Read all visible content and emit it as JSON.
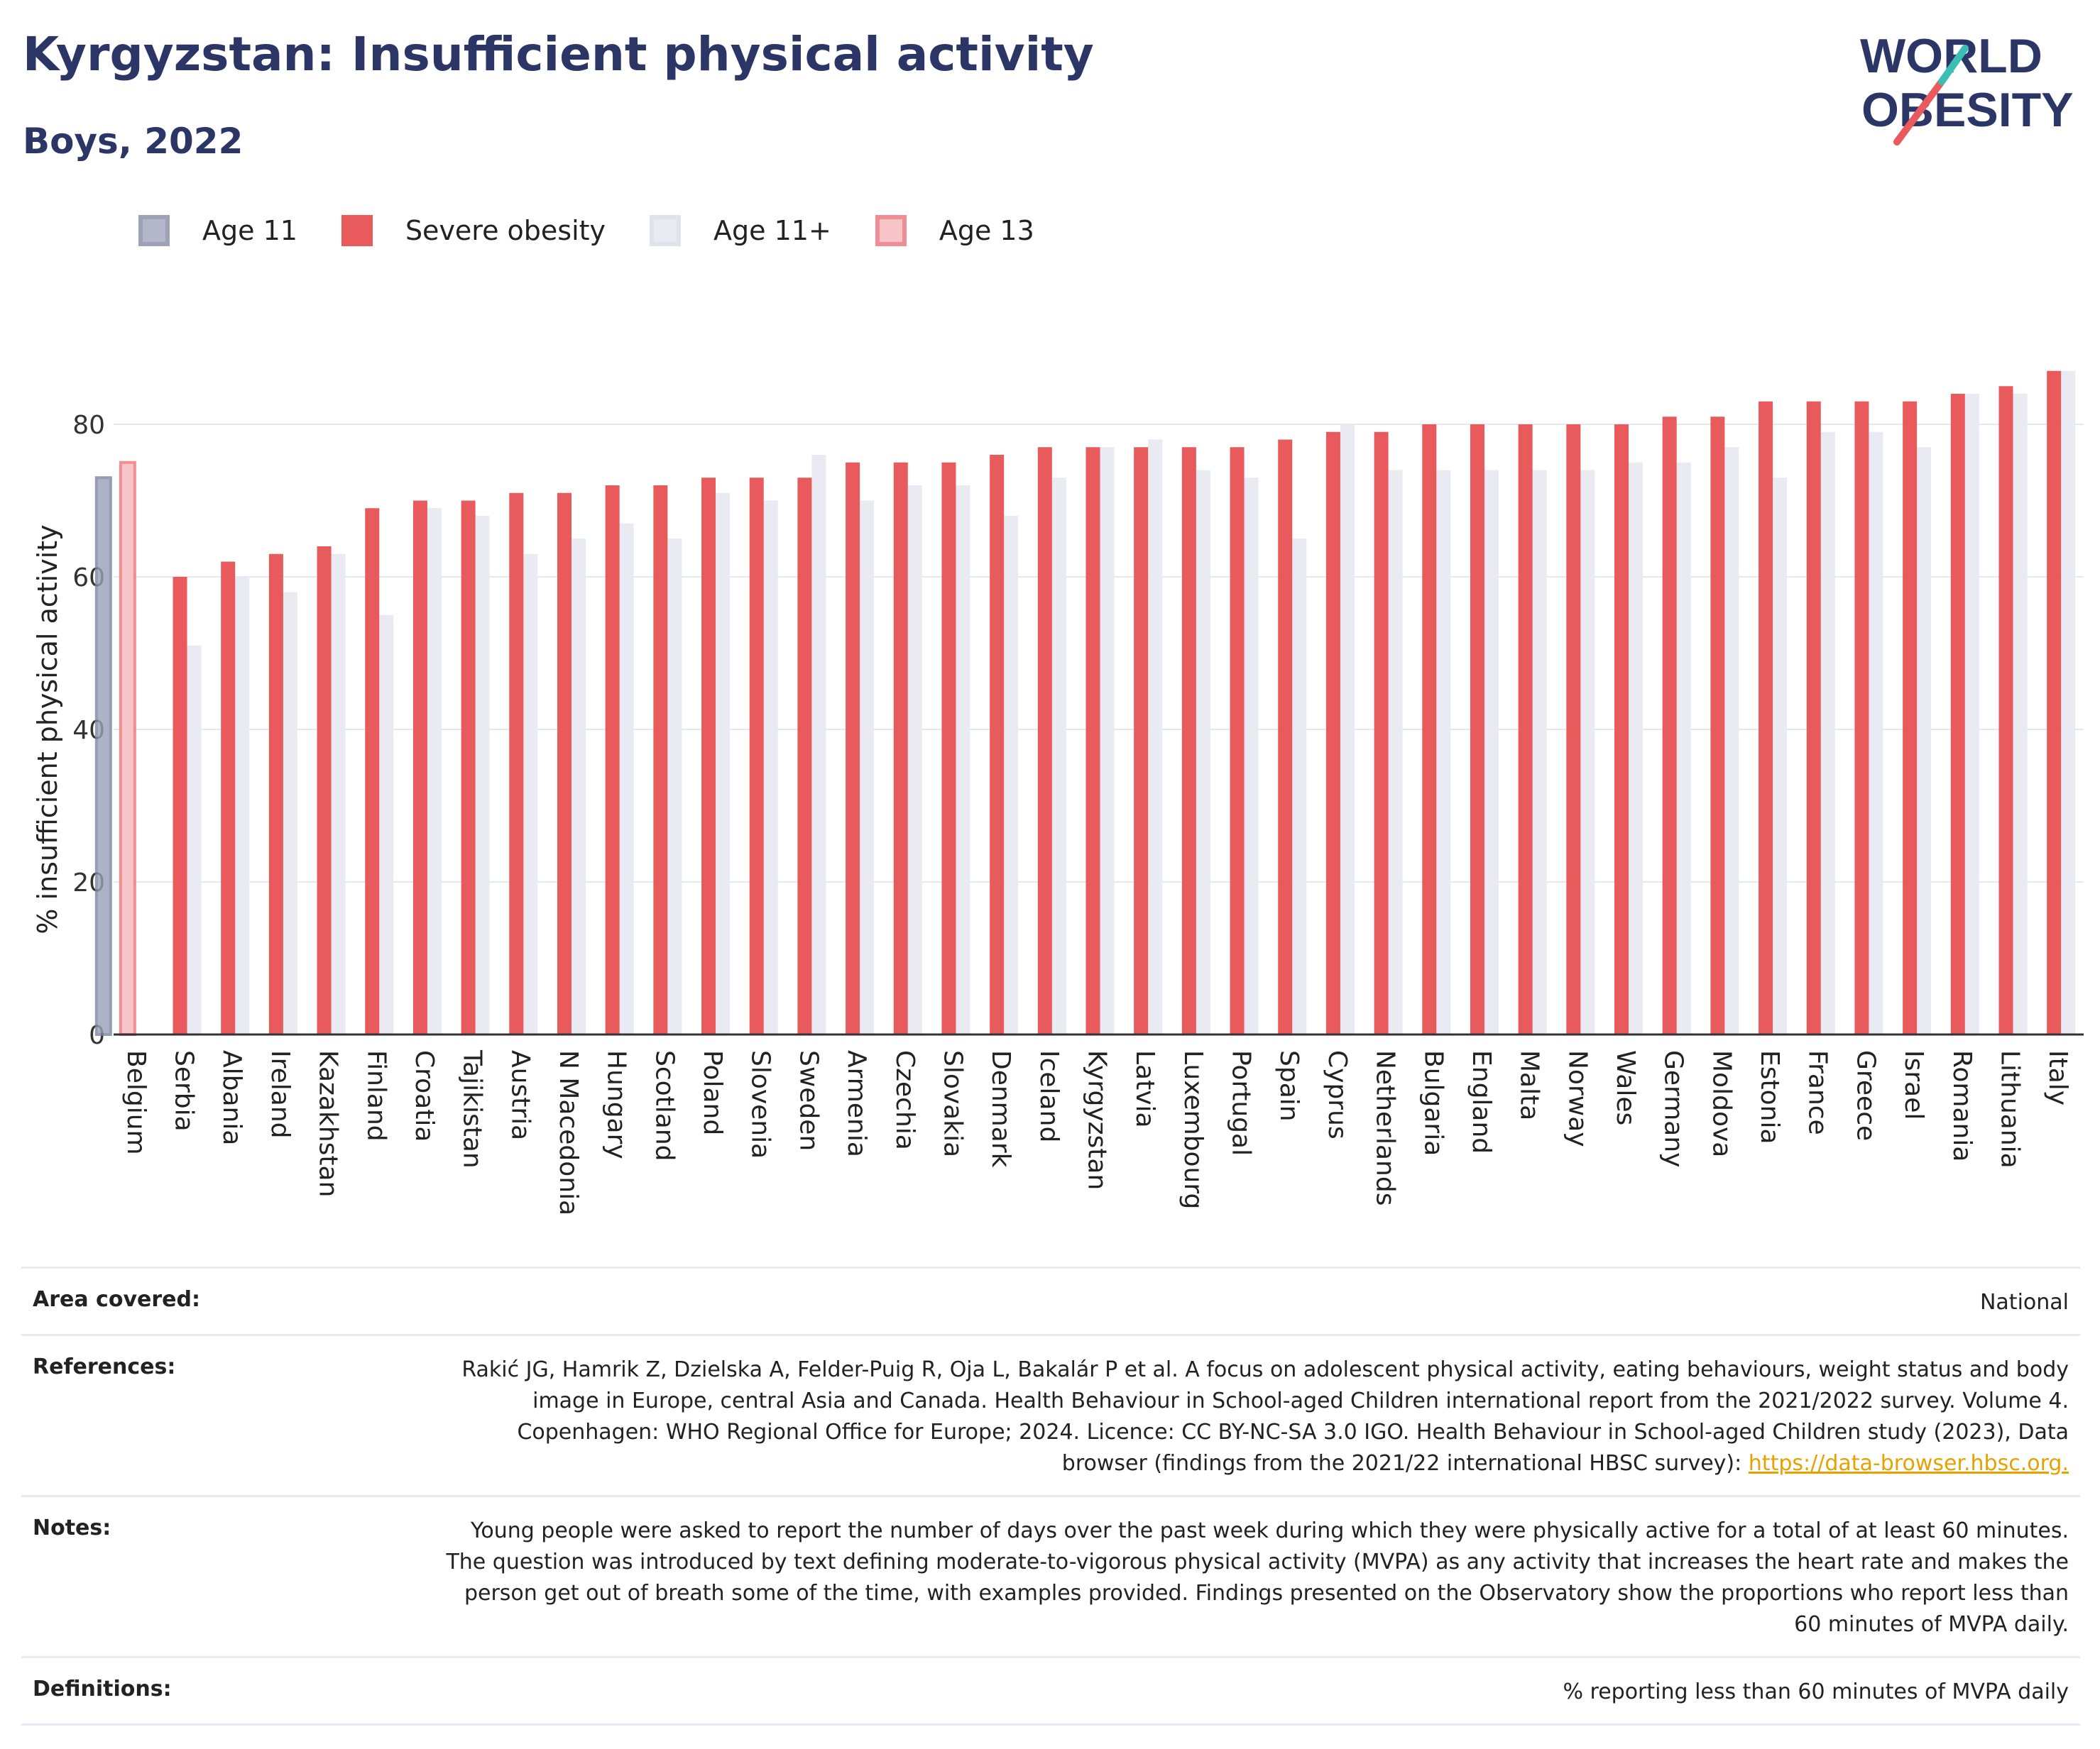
{
  "header": {
    "title": "Kyrgyzstan: Insufficient physical activity",
    "subtitle": "Boys, 2022"
  },
  "logo": {
    "line1": "WORLD",
    "line2": "OBESITY"
  },
  "legend": [
    {
      "label": "Age 11",
      "color": "#9aa0b8",
      "border": "#7d84a0"
    },
    {
      "label": "Severe obesity",
      "color": "#e85a5c",
      "border": "#e85a5c"
    },
    {
      "label": "Age 11+",
      "color": "#e9eaf2",
      "border": "#e0e2ec"
    },
    {
      "label": "Age 13",
      "color": "#f7b6ba",
      "border": "#f18e94"
    }
  ],
  "chart_data": {
    "type": "bar",
    "ylabel": "% insufficient physical activity",
    "ylim": [
      0,
      90
    ],
    "yticks": [
      0,
      20,
      40,
      60,
      80
    ],
    "grid": true,
    "categories": [
      "Belgium",
      "Serbia",
      "Albania",
      "Ireland",
      "Kazakhstan",
      "Finland",
      "Croatia",
      "Tajikistan",
      "Austria",
      "N Macedonia",
      "Hungary",
      "Scotland",
      "Poland",
      "Slovenia",
      "Sweden",
      "Armenia",
      "Czechia",
      "Slovakia",
      "Denmark",
      "Iceland",
      "Kyrgyzstan",
      "Latvia",
      "Luxembourg",
      "Portugal",
      "Spain",
      "Cyprus",
      "Netherlands",
      "Bulgaria",
      "England",
      "Malta",
      "Norway",
      "Wales",
      "Germany",
      "Moldova",
      "Estonia",
      "France",
      "Greece",
      "Israel",
      "Romania",
      "Lithuania",
      "Italy"
    ],
    "series": [
      {
        "name": "Severe obesity",
        "color": "#e85a5c",
        "values": [
          null,
          60,
          62,
          63,
          64,
          69,
          70,
          70,
          71,
          71,
          72,
          72,
          73,
          73,
          73,
          75,
          75,
          75,
          76,
          77,
          77,
          77,
          77,
          77,
          78,
          79,
          79,
          80,
          80,
          80,
          80,
          80,
          81,
          81,
          83,
          83,
          83,
          83,
          84,
          85,
          87
        ]
      },
      {
        "name": "Age 11+",
        "color": "#e9eaf2",
        "values": [
          null,
          51,
          60,
          58,
          63,
          55,
          69,
          68,
          63,
          65,
          67,
          65,
          71,
          70,
          76,
          70,
          72,
          72,
          68,
          73,
          77,
          78,
          74,
          73,
          65,
          80,
          74,
          74,
          74,
          74,
          74,
          75,
          75,
          77,
          73,
          79,
          79,
          77,
          84,
          84,
          87
        ]
      },
      {
        "name": "Age 11",
        "color": "#9aa0b8",
        "values": [
          73,
          null,
          null,
          null,
          null,
          null,
          null,
          null,
          null,
          null,
          null,
          null,
          null,
          null,
          null,
          null,
          null,
          null,
          null,
          null,
          null,
          null,
          null,
          null,
          null,
          null,
          null,
          null,
          null,
          null,
          null,
          null,
          null,
          null,
          null,
          null,
          null,
          null,
          null,
          null,
          null
        ]
      },
      {
        "name": "Age 13",
        "color": "#f7b6ba",
        "values": [
          75,
          null,
          null,
          null,
          null,
          null,
          null,
          null,
          null,
          null,
          null,
          null,
          null,
          null,
          null,
          null,
          null,
          null,
          null,
          null,
          null,
          null,
          null,
          null,
          null,
          null,
          null,
          null,
          null,
          null,
          null,
          null,
          null,
          null,
          null,
          null,
          null,
          null,
          null,
          null,
          null
        ]
      }
    ]
  },
  "info": {
    "area_label": "Area covered:",
    "area_value": "National",
    "references_label": "References:",
    "references_text": "Rakić JG, Hamrik Z, Dzielska A, Felder-Puig R, Oja L, Bakalár P et al. A focus on adolescent physical activity, eating behaviours, weight status and body image in Europe, central Asia and Canada. Health Behaviour in School-aged Children international report from the 2021/2022 survey. Volume 4. Copenhagen: WHO Regional Office for Europe; 2024. Licence: CC BY-NC-SA 3.0 IGO. Health Behaviour in School-aged Children study (2023), Data browser (findings from the 2021/22 international HBSC survey): ",
    "references_link": "https://data-browser.hbsc.org.",
    "notes_label": "Notes:",
    "notes_text": "Young people were asked to report the number of days over the past week during which they were physically active for a total of at least 60 minutes. The question was introduced by text defining moderate-to-vigorous physical activity (MVPA) as any activity that increases the heart rate and makes the person get out of breath some of the time, with examples provided. Findings presented on the Observatory show the proportions who report less than 60 minutes of MVPA daily.",
    "definitions_label": "Definitions:",
    "definitions_value": "% reporting less than 60 minutes of MVPA daily"
  }
}
